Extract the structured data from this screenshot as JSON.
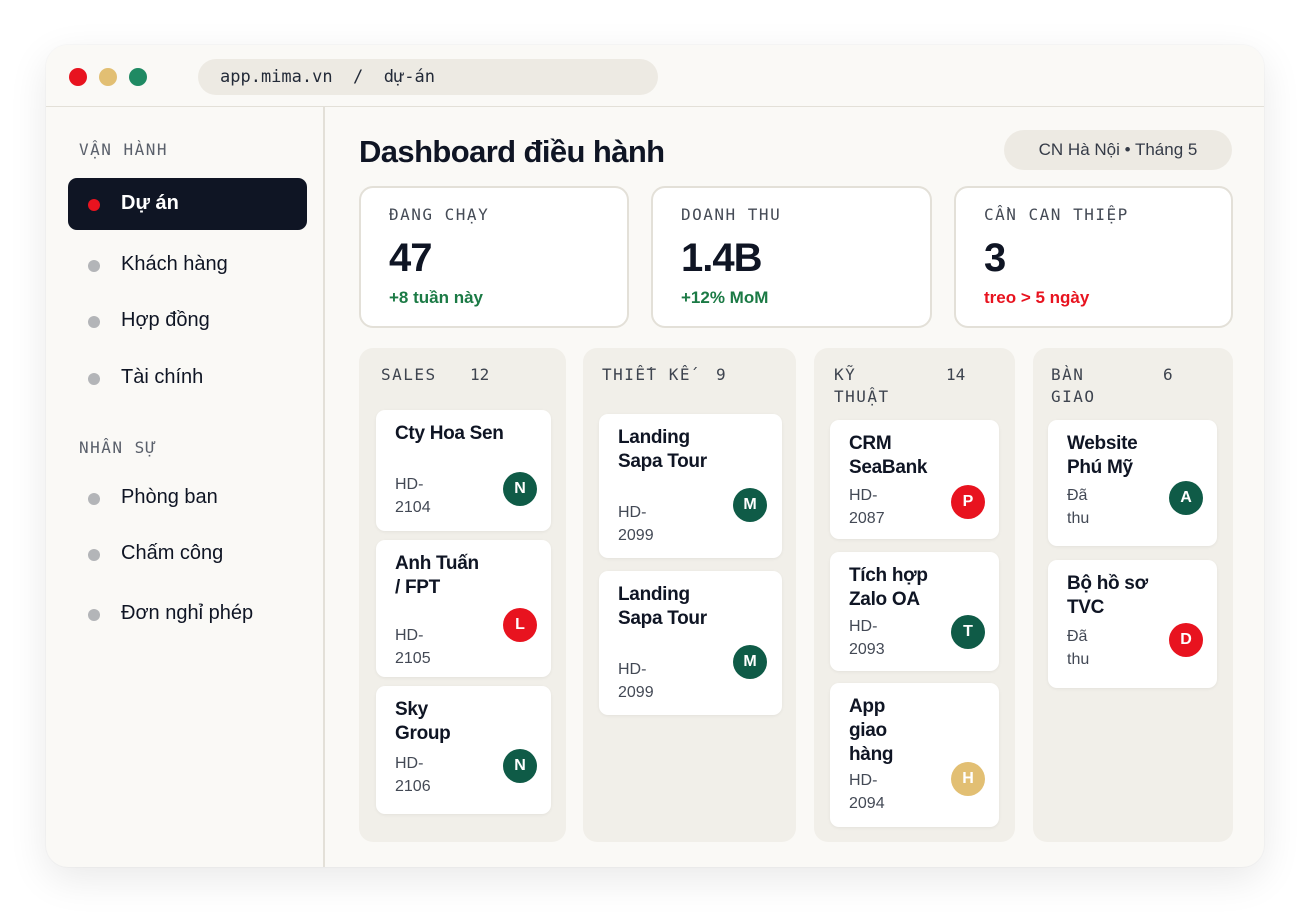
{
  "browser": {
    "url": "app.mima.vn  /  dự-án",
    "traffic_lights": [
      "#e8131f",
      "#e2bf73",
      "#1f8a63"
    ]
  },
  "sidebar": {
    "sections": [
      {
        "label": "VẬN HÀNH",
        "items": [
          {
            "label": "Dự án",
            "active": true
          },
          {
            "label": "Khách hàng"
          },
          {
            "label": "Hợp đồng"
          },
          {
            "label": "Tài chính"
          }
        ]
      },
      {
        "label": "NHÂN SỰ",
        "items": [
          {
            "label": "Phòng ban"
          },
          {
            "label": "Chấm công"
          },
          {
            "label": "Đơn nghỉ phép"
          }
        ]
      }
    ]
  },
  "header": {
    "title": "Dashboard điều hành",
    "filter": "CN Hà Nội  •  Tháng 5"
  },
  "stats": [
    {
      "label": "ĐANG CHẠY",
      "value": "47",
      "delta": "+8 tuần này",
      "delta_color": "#1b7a45"
    },
    {
      "label": "DOANH THU",
      "value": "1.4B",
      "delta": "+12% MoM",
      "delta_color": "#1b7a45"
    },
    {
      "label": "CẦN CAN THIỆP",
      "value": "3",
      "delta": "treo > 5 ngày",
      "delta_color": "#e8131f"
    }
  ],
  "board": {
    "columns": [
      {
        "title": "SALES",
        "count": "12",
        "cards": [
          {
            "title": "Cty Hoa Sen",
            "code": "HD-2104",
            "avatar": "N",
            "avatar_color": "#0f5b47"
          },
          {
            "title": "Anh Tuấn / FPT",
            "code": "HD-2105",
            "avatar": "L",
            "avatar_color": "#e8131f"
          },
          {
            "title": "Sky Group",
            "code": "HD-2106",
            "avatar": "N",
            "avatar_color": "#0f5b47"
          }
        ]
      },
      {
        "title": "THIẾT KẾ",
        "count": "9",
        "cards": [
          {
            "title": "Landing Sapa Tour",
            "code": "HD-2099",
            "avatar": "M",
            "avatar_color": "#0f5b47"
          },
          {
            "title": "Landing Sapa Tour",
            "code": "HD-2099",
            "avatar": "M",
            "avatar_color": "#0f5b47"
          }
        ]
      },
      {
        "title": "KỸ THUẬT",
        "count": "14",
        "cards": [
          {
            "title": "CRM SeaBank",
            "code": "HD-2087",
            "avatar": "P",
            "avatar_color": "#e8131f"
          },
          {
            "title": "Tích hợp Zalo OA",
            "code": "HD-2093",
            "avatar": "T",
            "avatar_color": "#0f5b47"
          },
          {
            "title": "App giao hàng",
            "code": "HD-2094",
            "avatar": "H",
            "avatar_color": "#e2bf73"
          }
        ]
      },
      {
        "title": "BÀN GIAO",
        "count": "6",
        "cards": [
          {
            "title": "Website Phú Mỹ",
            "code": "Đã thu",
            "avatar": "A",
            "avatar_color": "#0f5b47"
          },
          {
            "title": "Bộ hồ sơ TVC",
            "code": "Đã thu",
            "avatar": "D",
            "avatar_color": "#e8131f"
          }
        ]
      }
    ]
  }
}
